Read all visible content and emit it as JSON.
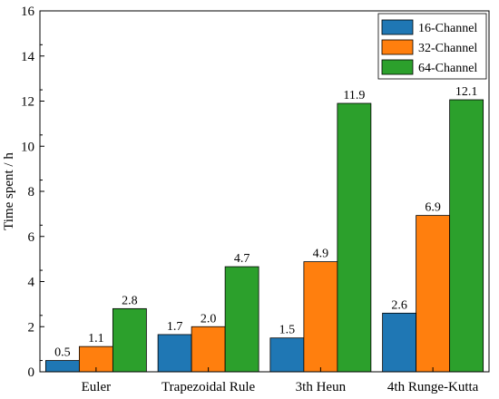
{
  "chart_data": {
    "type": "bar",
    "categories": [
      "Euler",
      "Trapezoidal Rule",
      "3th Heun",
      "4th Runge-Kutta"
    ],
    "series": [
      {
        "name": "16-Channel",
        "color": "#1f77b4",
        "values": [
          0.5,
          1.65,
          1.5,
          2.6
        ],
        "labels": [
          "0.5",
          "1.7",
          "1.5",
          "2.6"
        ]
      },
      {
        "name": "32-Channel",
        "color": "#ff7f0e",
        "values": [
          1.12,
          2.0,
          4.88,
          6.93
        ],
        "labels": [
          "1.1",
          "2.0",
          "4.9",
          "6.9"
        ]
      },
      {
        "name": "64-Channel",
        "color": "#2ca02c",
        "values": [
          2.8,
          4.66,
          11.9,
          12.06
        ],
        "labels": [
          "2.8",
          "4.7",
          "11.9",
          "12.1"
        ]
      }
    ],
    "title": "",
    "xlabel": "",
    "ylabel": "Time spent / h",
    "ylim": [
      0,
      16
    ],
    "yticks": [
      "0",
      "2",
      "4",
      "6",
      "8",
      "10",
      "12",
      "14",
      "16"
    ],
    "grid": false,
    "legend": "top-right"
  }
}
